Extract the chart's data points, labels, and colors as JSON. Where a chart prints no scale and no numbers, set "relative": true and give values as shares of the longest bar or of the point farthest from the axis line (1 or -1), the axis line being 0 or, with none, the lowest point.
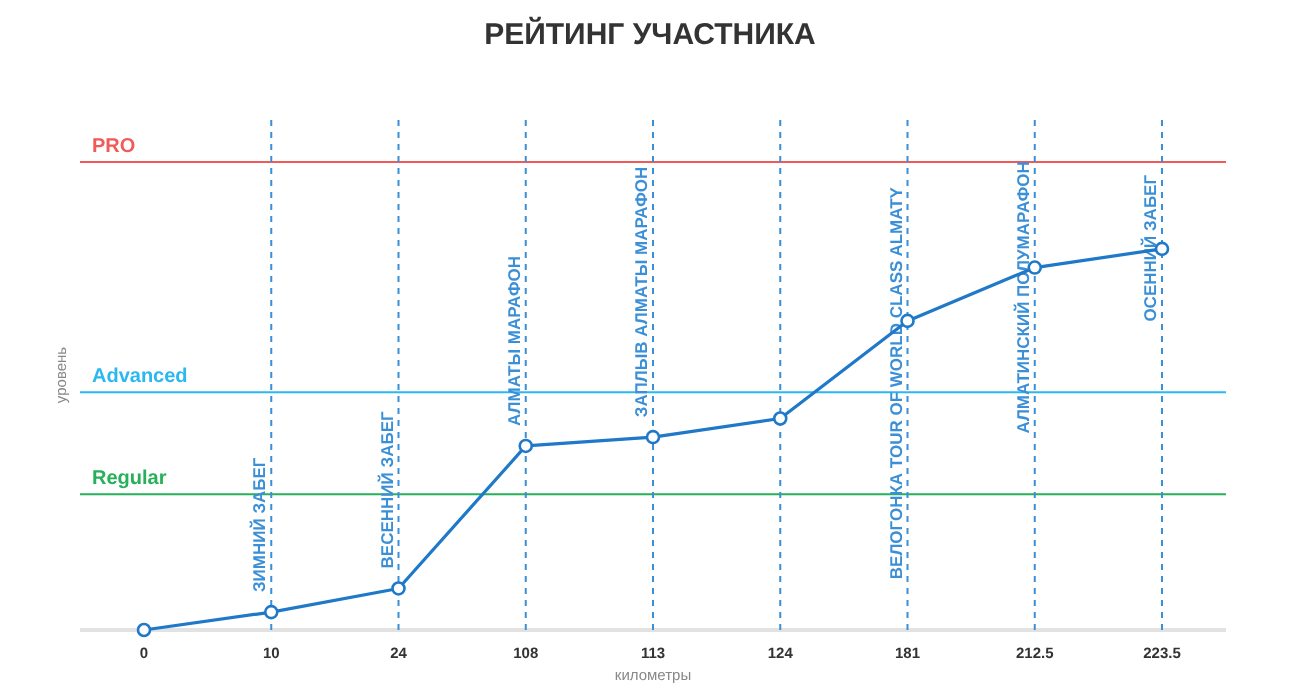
{
  "chart_data": {
    "type": "line",
    "title": "РЕЙТИНГ УЧАСТНИКА",
    "xlabel": "километры",
    "ylabel": "уровень",
    "relative": true,
    "marker": "circle",
    "line_style": "solid",
    "categories": [
      "0",
      "10",
      "24",
      "108",
      "113",
      "124",
      "181",
      "212.5",
      "223.5"
    ],
    "series": [
      {
        "color": "#1f78c8",
        "values": [
          0,
          0.047,
          0.109,
          0.483,
          0.506,
          0.555,
          0.811,
          0.951,
          1
        ]
      }
    ],
    "ref_lines": [
      {
        "axis": "y",
        "value": 1.228,
        "label": "PRO",
        "color": "#f25a5a",
        "line_style": "solid"
      },
      {
        "axis": "y",
        "value": 0.624,
        "label": "Advanced",
        "color": "#2bb8f0",
        "line_style": "solid"
      },
      {
        "axis": "y",
        "value": 0.356,
        "label": "Regular",
        "color": "#27b05a",
        "line_style": "solid"
      },
      {
        "axis": "x",
        "value": "10",
        "label": "ЗИМНИЙ ЗАБЕГ",
        "color": "#3a8fd6",
        "line_style": "dashed"
      },
      {
        "axis": "x",
        "value": "24",
        "label": "ВЕСЕННИЙ ЗАБЕГ",
        "color": "#3a8fd6",
        "line_style": "dashed"
      },
      {
        "axis": "x",
        "value": "108",
        "label": "АЛМАТЫ МАРАФОН",
        "color": "#3a8fd6",
        "line_style": "dashed"
      },
      {
        "axis": "x",
        "value": "113",
        "label": "ЗАПЛЫВ АЛМАТЫ МАРАФОН",
        "color": "#3a8fd6",
        "line_style": "dashed"
      },
      {
        "axis": "x",
        "value": "124",
        "label": null,
        "color": "#3a8fd6",
        "line_style": "dashed"
      },
      {
        "axis": "x",
        "value": "181",
        "label": "ВЕЛОГОНКА TOUR OF WORLD CLASS ALMATY",
        "color": "#3a8fd6",
        "line_style": "dashed"
      },
      {
        "axis": "x",
        "value": "212.5",
        "label": "АЛМАТИНСКИЙ ПОЛУМАРАФОН",
        "color": "#3a8fd6",
        "line_style": "dashed"
      },
      {
        "axis": "x",
        "value": "223.5",
        "label": "ОСЕННИЙ ЗАБЕГ",
        "color": "#3a8fd6",
        "line_style": "dashed"
      }
    ]
  }
}
